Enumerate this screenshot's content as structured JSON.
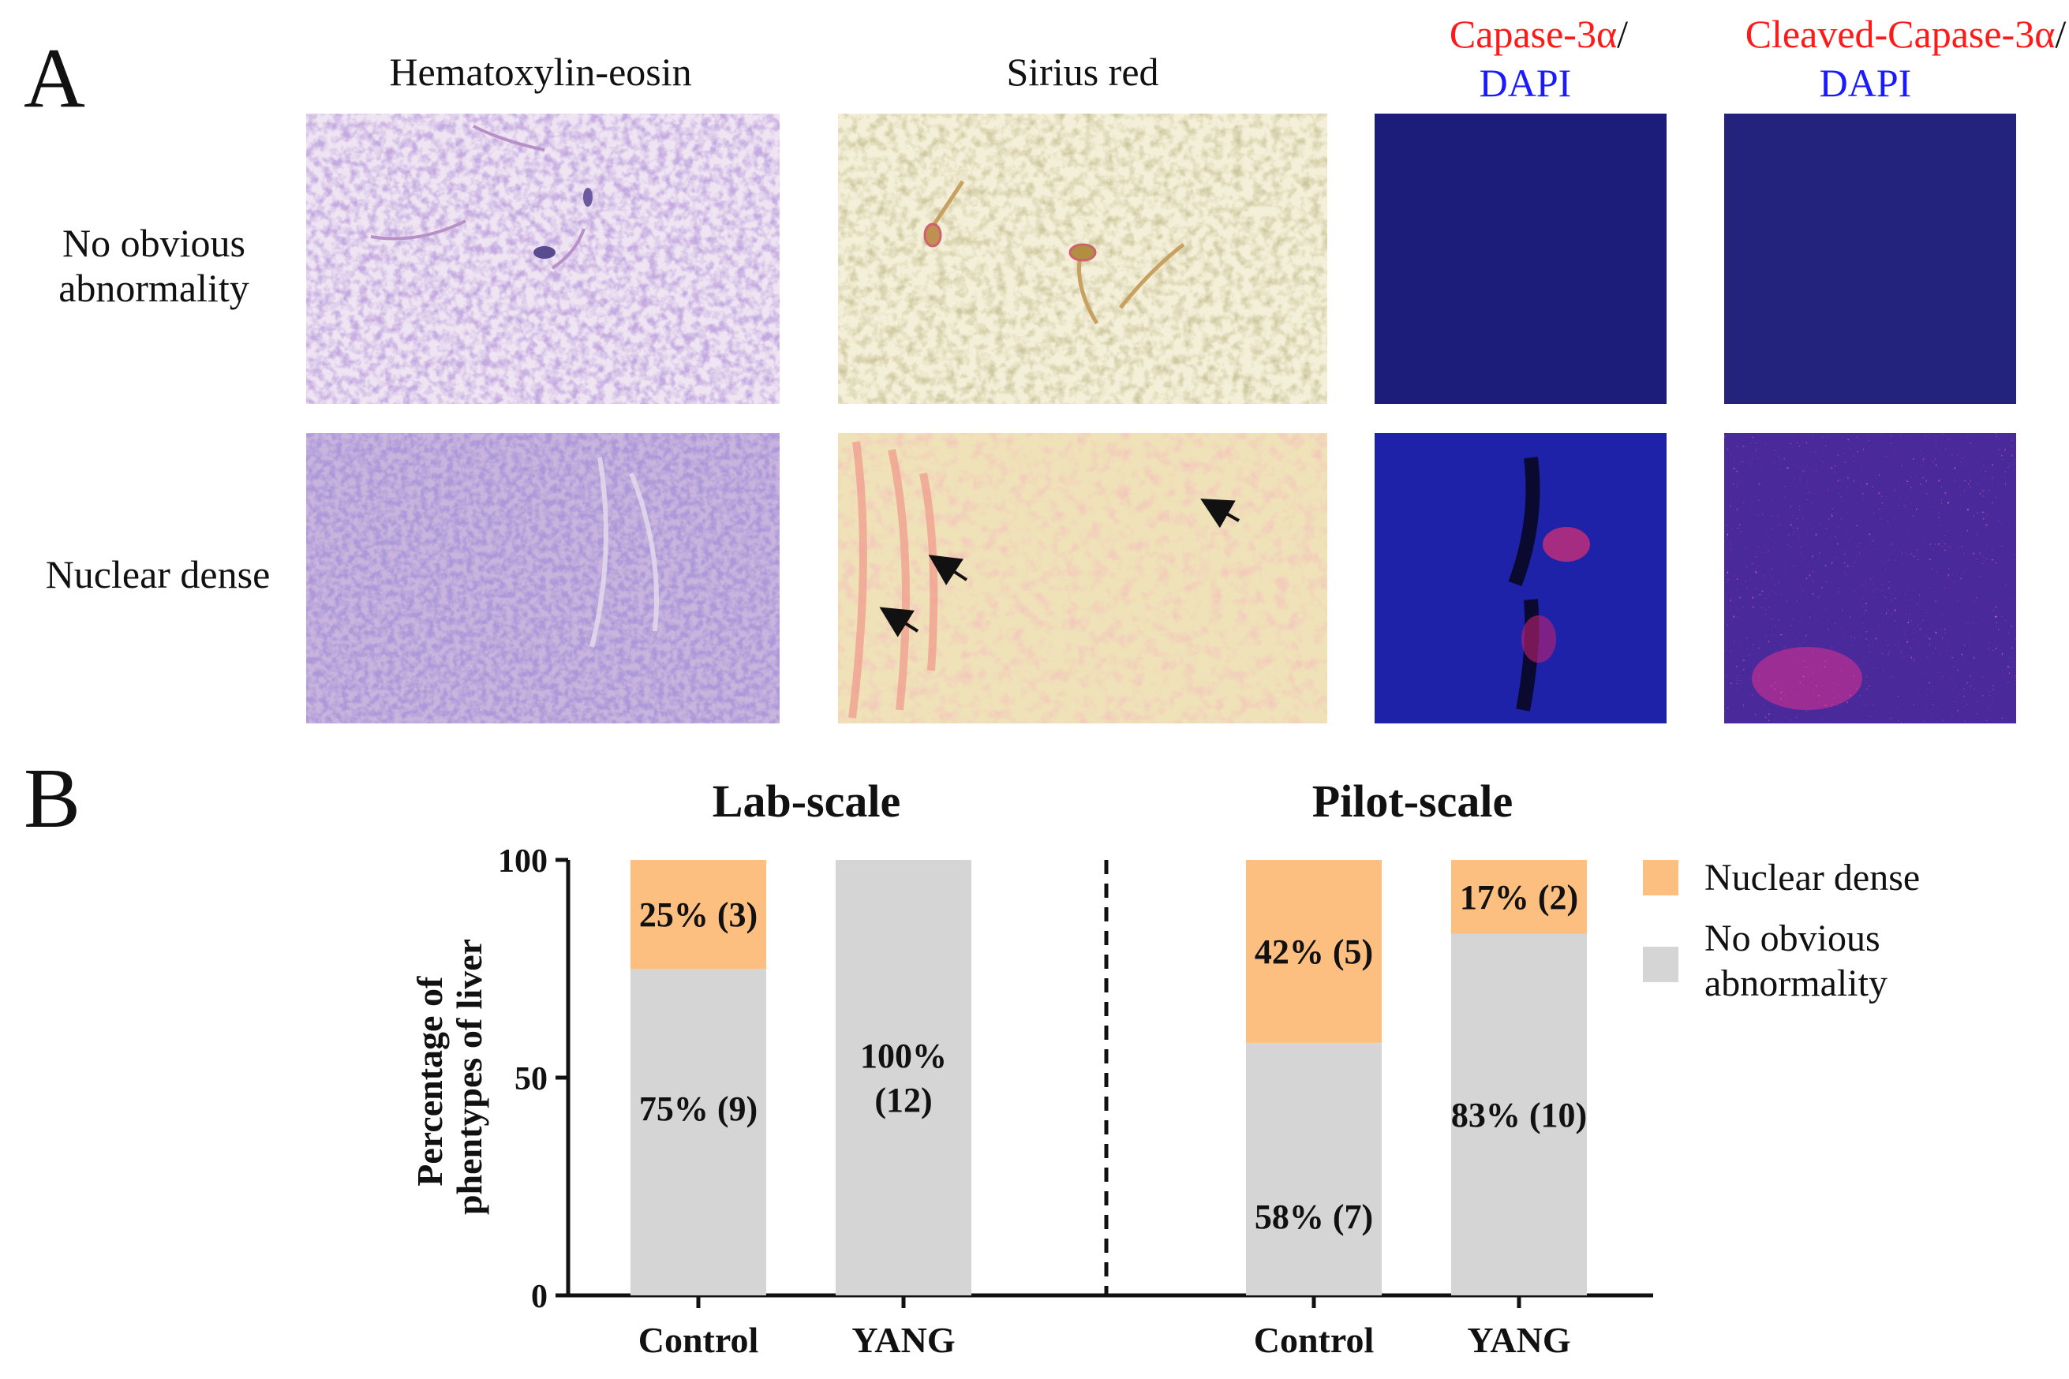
{
  "panel_a": {
    "letter": "A",
    "columns": [
      {
        "parts": [
          {
            "text": "Hematoxylin-eosin",
            "color": "#111111"
          }
        ]
      },
      {
        "parts": [
          {
            "text": "Sirius red",
            "color": "#111111"
          }
        ]
      },
      {
        "parts": [
          {
            "text": "Capase-3α",
            "color": "#ff1a1a"
          },
          {
            "text": "/",
            "color": "#111111"
          }
        ],
        "line2": {
          "text": "DAPI",
          "color": "#1a1aff"
        }
      },
      {
        "parts": [
          {
            "text": "Cleaved-Capase-3α",
            "color": "#ff1a1a"
          },
          {
            "text": "/",
            "color": "#111111"
          }
        ],
        "line2": {
          "text": "DAPI",
          "color": "#1a1aff"
        }
      }
    ],
    "rows": [
      {
        "lines": [
          "No obvious",
          "abnormality"
        ]
      },
      {
        "lines": [
          "Nuclear dense"
        ]
      }
    ]
  },
  "panel_b": {
    "letter": "B",
    "colors": {
      "nuclear_dense": "#fdbf80",
      "no_obvious": "#d5d5d5"
    },
    "legend": [
      {
        "label_lines": [
          "Nuclear dense"
        ],
        "color": "#fdbf80"
      },
      {
        "label_lines": [
          "No obvious",
          "abnormality"
        ],
        "color": "#d5d5d5"
      }
    ]
  },
  "chart_data": {
    "type": "bar",
    "stacked": true,
    "ylabel": "Percentage of phentypes of liver",
    "ylim": [
      0,
      100
    ],
    "yticks": [
      0,
      50,
      100
    ],
    "groups": [
      {
        "title": "Lab-scale",
        "categories": [
          "Control",
          "YANG"
        ],
        "series": [
          {
            "name": "No obvious abnormality",
            "values": [
              75,
              100
            ],
            "labels": [
              [
                "75% (9)"
              ],
              [
                "100%",
                "(12)"
              ]
            ]
          },
          {
            "name": "Nuclear dense",
            "values": [
              25,
              0
            ],
            "labels": [
              [
                "25% (3)"
              ],
              []
            ]
          }
        ]
      },
      {
        "title": "Pilot-scale",
        "categories": [
          "Control",
          "YANG"
        ],
        "series": [
          {
            "name": "No obvious abnormality",
            "values": [
              58,
              83
            ],
            "labels": [
              [
                "58% (7)"
              ],
              [
                "83% (10)"
              ]
            ]
          },
          {
            "name": "Nuclear dense",
            "values": [
              42,
              17
            ],
            "labels": [
              [
                "42% (5)"
              ],
              [
                "17% (2)"
              ]
            ]
          }
        ]
      }
    ],
    "legend_position": "right"
  }
}
